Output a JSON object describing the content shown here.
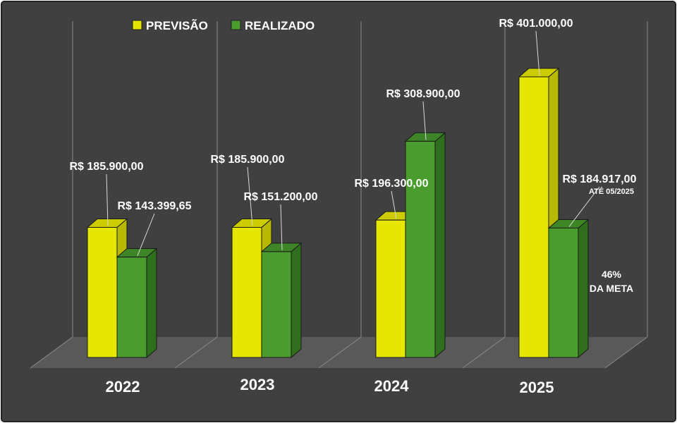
{
  "chart_data": {
    "type": "bar",
    "categories": [
      "2022",
      "2023",
      "2024",
      "2025"
    ],
    "series": [
      {
        "name": "PREVISÃO",
        "values": [
          185900.0,
          185900.0,
          196300.0,
          401000.0
        ]
      },
      {
        "name": "REALIZADO",
        "values": [
          143399.65,
          151200.0,
          308900.0,
          184917.0
        ]
      }
    ],
    "data_labels": {
      "PREVISÃO": [
        "R$ 185.900,00",
        "R$ 185.900,00",
        "R$ 196.300,00",
        "R$ 401.000,00"
      ],
      "REALIZADO": [
        "R$ 143.399,65",
        "R$ 151.200,00",
        "R$ 308.900,00",
        "R$ 184.917,00"
      ]
    },
    "annotations": {
      "realizado_2025_note": "ATÉ 05/2025",
      "meta_pct": "46%",
      "meta_text": "DA META"
    },
    "legend_position": "top-left",
    "ylim": [
      0,
      401000
    ],
    "grid": true,
    "colors": {
      "background": "#404040",
      "floor": "#595959",
      "previsao_front": "#e6e600",
      "previsao_side": "#b8b800",
      "previsao_top": "#cccc00",
      "realizado_front": "#4a9c2f",
      "realizado_side": "#2f6e1d",
      "realizado_top": "#3d8526",
      "gridline": "#8a8a8a",
      "text": "#ffffff"
    }
  }
}
